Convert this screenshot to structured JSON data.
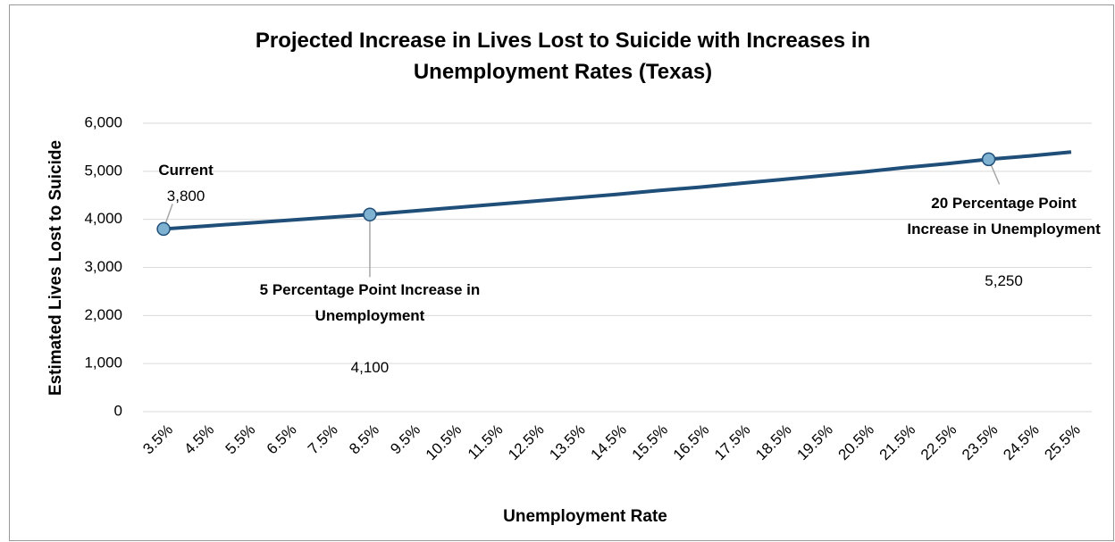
{
  "chart_data": {
    "type": "line",
    "title": "Projected Increase in Lives Lost to Suicide with Increases in Unemployment Rates (Texas)",
    "x_label": "Unemployment Rate",
    "y_label": "Estimated Lives Lost to Suicide",
    "categories": [
      "3.5%",
      "4.5%",
      "5.5%",
      "6.5%",
      "7.5%",
      "8.5%",
      "9.5%",
      "10.5%",
      "11.5%",
      "12.5%",
      "13.5%",
      "14.5%",
      "15.5%",
      "16.5%",
      "17.5%",
      "18.5%",
      "19.5%",
      "20.5%",
      "21.5%",
      "22.5%",
      "23.5%",
      "24.5%",
      "25.5%"
    ],
    "series": [
      {
        "name": "Estimated Lives Lost to Suicide",
        "color": "#1f4e79",
        "values": [
          3800,
          3860,
          3920,
          3980,
          4040,
          4100,
          4170,
          4240,
          4310,
          4380,
          4450,
          4520,
          4600,
          4670,
          4750,
          4830,
          4910,
          4990,
          5080,
          5160,
          5250,
          5320,
          5400
        ],
        "value_labels": [
          "3,800",
          null,
          null,
          null,
          null,
          "4,100",
          null,
          null,
          null,
          null,
          null,
          null,
          null,
          null,
          null,
          null,
          null,
          null,
          null,
          null,
          "5,250",
          null,
          null
        ],
        "point_labels": [
          "Current",
          null,
          null,
          null,
          null,
          "5 Percentage Point Increase in Unemployment",
          null,
          null,
          null,
          null,
          null,
          null,
          null,
          null,
          null,
          null,
          null,
          null,
          null,
          null,
          "20 Percentage Point Increase in Unemployment",
          null,
          null
        ]
      }
    ],
    "marker_color": "#7fb2d0",
    "ylim": [
      0,
      6000
    ],
    "yticks": [
      0,
      {
        "value": 1000,
        "label": "1,000"
      },
      {
        "value": 2000,
        "label": "2,000"
      },
      {
        "value": 3000,
        "label": "3,000"
      },
      {
        "value": 4000,
        "label": "4,000"
      },
      {
        "value": 5000,
        "label": "5,000"
      },
      {
        "value": 6000,
        "label": "6,000"
      }
    ],
    "grid": true
  }
}
